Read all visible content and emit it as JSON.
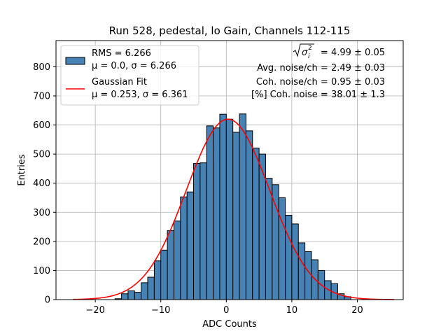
{
  "chart_data": {
    "type": "bar",
    "title": "Run 528, pedestal, lo Gain, Channels 112-115",
    "xlabel": "ADC Counts",
    "ylabel": "Entries",
    "xlim": [
      -26,
      27
    ],
    "ylim": [
      0,
      890
    ],
    "xticks": [
      -20,
      -10,
      0,
      10,
      20
    ],
    "yticks": [
      0,
      100,
      200,
      300,
      400,
      500,
      600,
      700,
      800
    ],
    "grid": true,
    "legend_position": "top-left",
    "histogram": {
      "bin_width": 1,
      "bin_left_edges": [
        -17,
        -16,
        -15,
        -14,
        -13,
        -12,
        -11,
        -10,
        -9,
        -8,
        -7,
        -6,
        -5,
        -4,
        -3,
        -2,
        -1,
        0,
        1,
        2,
        3,
        4,
        5,
        6,
        7,
        8,
        9,
        10,
        11,
        12,
        13,
        14,
        15,
        16,
        17,
        18
      ],
      "values": [
        3,
        20,
        30,
        25,
        58,
        77,
        133,
        170,
        237,
        270,
        353,
        370,
        468,
        470,
        597,
        590,
        637,
        620,
        575,
        638,
        580,
        521,
        500,
        417,
        395,
        350,
        290,
        260,
        195,
        165,
        137,
        100,
        65,
        55,
        20,
        10
      ],
      "fill_color": "#4682b4",
      "edge_color": "#000000"
    },
    "fit": {
      "mu": 0.253,
      "sigma": 6.361,
      "amplitude": 620,
      "x_range": [
        -23.4,
        25.6
      ],
      "color": "#ff0000"
    },
    "legend": [
      {
        "kind": "patch",
        "lines": [
          "RMS = 6.266",
          "μ = 0.0, σ = 6.266"
        ]
      },
      {
        "kind": "line",
        "lines": [
          "Gaussian Fit",
          "μ = 0.253, σ = 6.361"
        ]
      }
    ],
    "annotations": {
      "line1_suffix": " = 4.99 ± 0.05",
      "line2": "Avg. noise/ch = 2.49 ± 0.03",
      "line3": "Coh. noise/ch = 0.95 ± 0.03",
      "line4": "[%] Coh. noise = 38.01 ± 1.3"
    }
  }
}
